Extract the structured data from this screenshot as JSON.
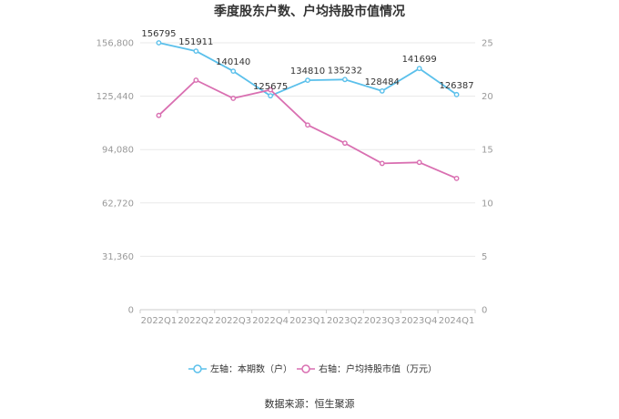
{
  "chart_data": {
    "type": "line",
    "title": "季度股东户数、户均持股市值情况",
    "categories": [
      "2022Q1",
      "2022Q2",
      "2022Q3",
      "2022Q4",
      "2023Q1",
      "2023Q2",
      "2023Q3",
      "2023Q4",
      "2024Q1"
    ],
    "series": [
      {
        "name": "左轴：本期数（户）",
        "axis": "left",
        "color": "#5bc0eb",
        "values": [
          156795,
          151911,
          140140,
          125675,
          134810,
          135232,
          128484,
          141699,
          126387
        ],
        "labels": [
          "156795",
          "151911",
          "140140",
          "125675",
          "134810",
          "135232",
          "128484",
          "141699",
          "126387"
        ]
      },
      {
        "name": "右轴：户均持股市值（万元）",
        "axis": "right",
        "color": "#d96fb1",
        "values": [
          18.2,
          21.5,
          19.8,
          20.6,
          17.3,
          15.6,
          13.7,
          13.8,
          12.3
        ]
      }
    ],
    "left_axis": {
      "min": 0,
      "max": 156800,
      "ticks": [
        0,
        31360,
        62720,
        94080,
        125440,
        156800
      ],
      "tick_labels": [
        "0",
        "31,360",
        "62,720",
        "94,080",
        "125,440",
        "156,800"
      ]
    },
    "right_axis": {
      "min": 0,
      "max": 25,
      "ticks": [
        0,
        5,
        10,
        15,
        20,
        25
      ],
      "tick_labels": [
        "0",
        "5",
        "10",
        "15",
        "20",
        "25"
      ]
    },
    "grid": true,
    "legend_position": "bottom"
  },
  "source": "数据来源：恒生聚源"
}
